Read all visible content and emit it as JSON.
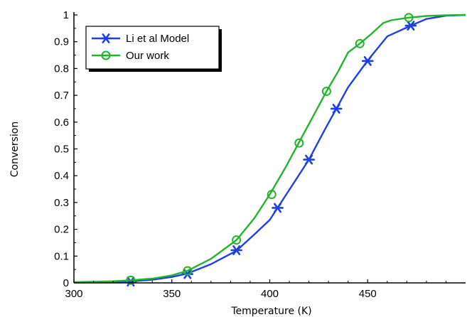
{
  "chart_data": {
    "type": "line",
    "title": "",
    "xlabel": "Temperature (K)",
    "ylabel": "Conversion",
    "xlim": [
      300,
      500
    ],
    "ylim": [
      0,
      1
    ],
    "x_ticks": [
      "300",
      "350",
      "400",
      "450"
    ],
    "y_ticks": [
      "0",
      "0.1",
      "0.2",
      "0.3",
      "0.4",
      "0.5",
      "0.6",
      "0.7",
      "0.8",
      "0.9",
      "1"
    ],
    "grid": false,
    "legend_position": "top-left",
    "series": [
      {
        "name": "Li et al Model",
        "color": "#1f3fe6",
        "marker": "asterisk",
        "line": [
          [
            300,
            0.002
          ],
          [
            320,
            0.004
          ],
          [
            330,
            0.006
          ],
          [
            340,
            0.012
          ],
          [
            350,
            0.022
          ],
          [
            358,
            0.035
          ],
          [
            370,
            0.07
          ],
          [
            383,
            0.12
          ],
          [
            392,
            0.18
          ],
          [
            400,
            0.235
          ],
          [
            404,
            0.28
          ],
          [
            412,
            0.37
          ],
          [
            420,
            0.46
          ],
          [
            428,
            0.57
          ],
          [
            434,
            0.65
          ],
          [
            440,
            0.73
          ],
          [
            450,
            0.83
          ],
          [
            460,
            0.92
          ],
          [
            472,
            0.96
          ],
          [
            480,
            0.985
          ],
          [
            490,
            0.997
          ],
          [
            500,
            1.0
          ]
        ],
        "markers": [
          [
            329,
            0.005
          ],
          [
            358,
            0.033
          ],
          [
            383,
            0.122
          ],
          [
            404,
            0.28
          ],
          [
            420,
            0.46
          ],
          [
            434,
            0.65
          ],
          [
            450,
            0.828
          ],
          [
            472,
            0.96
          ]
        ]
      },
      {
        "name": "Our work",
        "color": "#22b42a",
        "marker": "circle",
        "line": [
          [
            300,
            0.003
          ],
          [
            320,
            0.006
          ],
          [
            330,
            0.01
          ],
          [
            340,
            0.016
          ],
          [
            350,
            0.028
          ],
          [
            358,
            0.045
          ],
          [
            370,
            0.09
          ],
          [
            383,
            0.16
          ],
          [
            392,
            0.24
          ],
          [
            400,
            0.33
          ],
          [
            408,
            0.43
          ],
          [
            415,
            0.525
          ],
          [
            422,
            0.62
          ],
          [
            429,
            0.715
          ],
          [
            435,
            0.79
          ],
          [
            440,
            0.86
          ],
          [
            446,
            0.893
          ],
          [
            452,
            0.93
          ],
          [
            458,
            0.97
          ],
          [
            462,
            0.98
          ],
          [
            471,
            0.99
          ],
          [
            480,
            0.996
          ],
          [
            490,
            0.999
          ],
          [
            500,
            1.0
          ]
        ],
        "markers": [
          [
            329,
            0.01
          ],
          [
            358,
            0.045
          ],
          [
            383,
            0.16
          ],
          [
            401,
            0.33
          ],
          [
            415,
            0.522
          ],
          [
            429,
            0.715
          ],
          [
            446,
            0.893
          ],
          [
            471,
            0.99
          ]
        ]
      }
    ]
  }
}
